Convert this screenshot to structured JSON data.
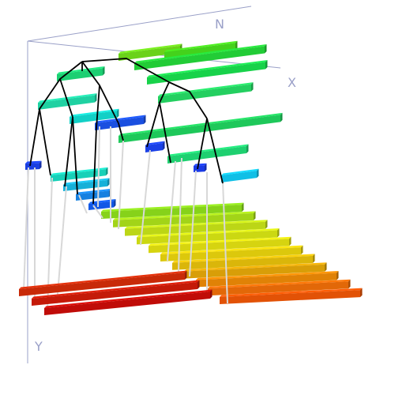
{
  "axes": {
    "labels": {
      "n": "N",
      "x": "X",
      "y": "Y"
    },
    "color": "#8a8fc0"
  },
  "colors": {
    "tree_edge": "#000000",
    "drop_line": "#d8d8d8"
  },
  "upper_bars": [
    {
      "color": "#6ad21a"
    },
    {
      "color": "#44d21c"
    },
    {
      "color": "#22cc36"
    },
    {
      "color": "#1ccf72"
    },
    {
      "color": "#18d24a"
    },
    {
      "color": "#1fd1a2"
    },
    {
      "color": "#24cf60"
    },
    {
      "color": "#12d0c6"
    },
    {
      "color": "#1ec85a"
    },
    {
      "color": "#1a4fe0"
    },
    {
      "color": "#1ed070"
    },
    {
      "color": "#1a40e6"
    },
    {
      "color": "#10bfe6"
    }
  ],
  "lower_bars_left": [
    {
      "color": "#18d0b8"
    },
    {
      "color": "#16b0d8"
    },
    {
      "color": "#1680e0"
    },
    {
      "color": "#1258e6"
    }
  ],
  "lower_bars_right": [
    {
      "color": "#86d21a"
    },
    {
      "color": "#a2d418"
    },
    {
      "color": "#bcd616"
    },
    {
      "color": "#cbd812"
    },
    {
      "color": "#d6d410"
    },
    {
      "color": "#dcc80c"
    },
    {
      "color": "#dab60a"
    },
    {
      "color": "#d89e08"
    },
    {
      "color": "#e08206"
    },
    {
      "color": "#e26808"
    },
    {
      "color": "#e25206"
    }
  ],
  "front_red_bars": [
    {
      "color": "#c82a08"
    },
    {
      "color": "#c41a08"
    },
    {
      "color": "#c00c08"
    }
  ]
}
